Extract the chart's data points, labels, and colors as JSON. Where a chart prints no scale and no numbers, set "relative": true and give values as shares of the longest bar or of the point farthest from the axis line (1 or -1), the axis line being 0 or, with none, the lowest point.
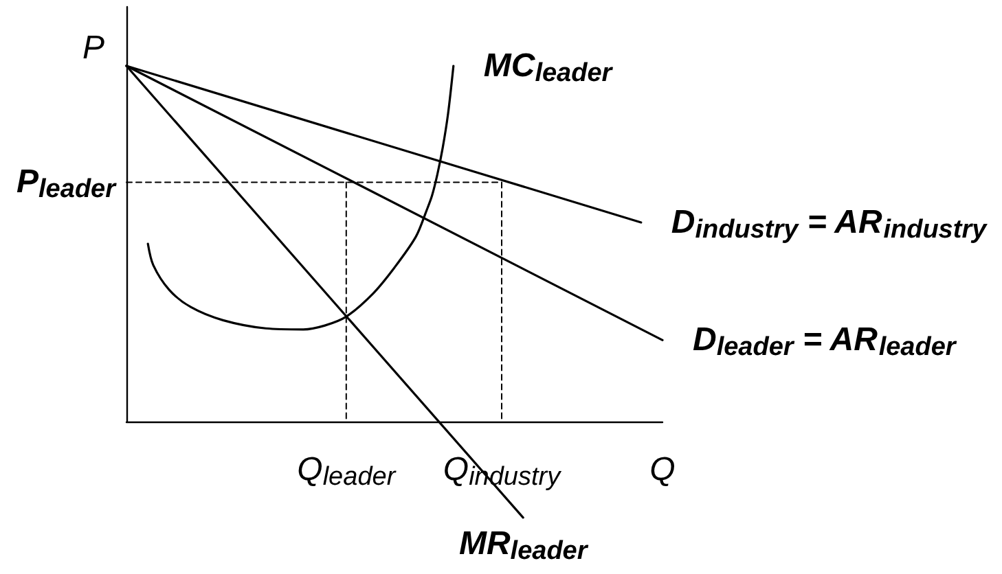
{
  "chart_data": {
    "type": "line",
    "relative": true,
    "xlabel": "Q",
    "ylabel": "P",
    "categories": [
      null,
      null,
      null,
      null,
      null,
      null,
      null,
      null,
      null,
      null,
      null,
      null,
      null,
      null,
      null,
      null,
      null,
      null,
      null,
      null,
      null,
      null,
      null,
      null,
      null,
      null,
      null,
      null,
      null,
      null,
      null,
      null,
      null,
      null,
      null,
      null,
      null,
      null,
      null,
      null,
      null,
      "Q$_{leader}$",
      null,
      null,
      null,
      null,
      null,
      null,
      null,
      null,
      null,
      null,
      null,
      null,
      null,
      null,
      null,
      null,
      null,
      null,
      null,
      null,
      null,
      null,
      null,
      null,
      null,
      null,
      null,
      null,
      "Q$_{industry}$",
      null,
      null,
      null,
      null,
      null,
      null,
      null,
      null,
      null,
      null,
      null,
      null,
      null,
      null,
      null,
      null,
      null,
      null,
      null,
      null,
      null,
      null,
      null,
      null,
      null,
      null,
      null,
      null,
      null,
      null
    ],
    "tick_labels": "x",
    "grid": false,
    "marker": "none",
    "line_style": "solid",
    "series": [
      {
        "name": "D$_{industry}$ = AR$_{industry}$",
        "color": "#000000",
        "values": [
          1,
          null,
          null,
          null,
          null,
          null,
          null,
          null,
          null,
          null,
          null,
          null,
          null,
          null,
          null,
          null,
          null,
          null,
          null,
          null,
          null,
          null,
          null,
          null,
          null,
          null,
          null,
          null,
          null,
          null,
          null,
          null,
          null,
          null,
          null,
          null,
          null,
          null,
          null,
          null,
          null,
          null,
          null,
          null,
          null,
          null,
          null,
          null,
          null,
          null,
          null,
          null,
          null,
          null,
          null,
          null,
          null,
          null,
          null,
          null,
          null,
          null,
          null,
          null,
          null,
          null,
          null,
          null,
          null,
          null,
          null,
          null,
          null,
          null,
          null,
          null,
          null,
          null,
          null,
          null,
          null,
          null,
          null,
          null,
          null,
          null,
          null,
          null,
          null,
          null,
          null,
          null,
          null,
          null,
          null,
          null,
          0.56,
          null,
          null,
          null,
          null
        ]
      },
      {
        "name": "D$_{leader}$ = AR$_{leader}$",
        "color": "#000000",
        "values": [
          1,
          null,
          null,
          null,
          null,
          null,
          null,
          null,
          null,
          null,
          null,
          null,
          null,
          null,
          null,
          null,
          null,
          null,
          null,
          null,
          null,
          null,
          null,
          null,
          null,
          null,
          null,
          null,
          null,
          null,
          null,
          null,
          null,
          null,
          null,
          null,
          null,
          null,
          null,
          null,
          null,
          null,
          null,
          null,
          null,
          null,
          null,
          null,
          null,
          null,
          null,
          null,
          null,
          null,
          null,
          null,
          null,
          null,
          null,
          null,
          null,
          null,
          null,
          null,
          null,
          null,
          null,
          null,
          null,
          null,
          null,
          null,
          null,
          null,
          null,
          null,
          null,
          null,
          null,
          null,
          null,
          null,
          null,
          null,
          null,
          null,
          null,
          null,
          null,
          null,
          null,
          null,
          null,
          null,
          null,
          null,
          null,
          null,
          null,
          null,
          0.229
        ]
      },
      {
        "name": "MR$_{leader}$",
        "color": "#000000",
        "values": [
          1,
          null,
          null,
          null,
          null,
          null,
          null,
          null,
          null,
          null,
          null,
          null,
          null,
          null,
          null,
          null,
          null,
          null,
          null,
          null,
          null,
          null,
          null,
          null,
          null,
          null,
          null,
          null,
          null,
          null,
          null,
          null,
          null,
          null,
          null,
          null,
          null,
          null,
          null,
          null,
          null,
          null,
          null,
          null,
          null,
          null,
          null,
          null,
          null,
          null,
          null,
          null,
          null,
          null,
          null,
          null,
          null,
          null,
          null,
          null,
          null,
          null,
          null,
          null,
          null,
          null,
          null,
          null,
          null,
          null,
          null,
          null,
          null,
          null,
          -0.27,
          null,
          null,
          null,
          null,
          null,
          null,
          null,
          null,
          null,
          null,
          null,
          null,
          null,
          null,
          null,
          null,
          null,
          null,
          null,
          null,
          null,
          null,
          null,
          null,
          null,
          null
        ]
      },
      {
        "name": "MC$_{leader}$",
        "color": "#000000",
        "values": [
          null,
          null,
          null,
          null,
          0.5,
          0.44,
          null,
          null,
          0.37,
          null,
          null,
          null,
          0.322,
          null,
          null,
          null,
          null,
          null,
          0.285,
          null,
          null,
          null,
          null,
          null,
          null,
          null,
          0.262,
          null,
          null,
          null,
          null,
          null,
          null,
          0.259,
          null,
          null,
          null,
          0.27,
          null,
          null,
          null,
          0.295,
          null,
          null,
          null,
          null,
          0.36,
          null,
          null,
          null,
          0.433,
          null,
          null,
          null,
          0.52,
          null,
          0.594,
          0.635,
          0.695,
          0.77,
          0.866,
          1,
          null,
          null,
          null,
          null,
          null,
          null,
          null,
          null,
          null,
          null,
          null,
          null,
          null,
          null,
          null,
          null,
          null,
          null,
          null,
          null,
          null,
          null,
          null,
          null,
          null,
          null,
          null,
          null,
          null,
          null,
          null,
          null,
          null,
          null,
          null,
          null,
          null,
          null,
          null
        ]
      },
      {
        "name": "P$_{leader}$",
        "color": "#000000",
        "line_style": "dashed",
        "values": [
          0.673,
          null,
          null,
          null,
          null,
          null,
          null,
          null,
          null,
          null,
          null,
          null,
          null,
          null,
          null,
          null,
          null,
          null,
          null,
          null,
          null,
          null,
          null,
          null,
          null,
          null,
          null,
          null,
          null,
          null,
          null,
          null,
          null,
          null,
          null,
          null,
          null,
          null,
          null,
          null,
          null,
          null,
          null,
          null,
          null,
          null,
          null,
          null,
          null,
          null,
          null,
          null,
          null,
          null,
          null,
          null,
          null,
          null,
          null,
          null,
          null,
          null,
          null,
          null,
          null,
          null,
          null,
          null,
          null,
          null,
          0.673,
          null,
          null,
          null,
          null,
          null,
          null,
          null,
          null,
          null,
          null,
          null,
          null,
          null,
          null,
          null,
          null,
          null,
          null,
          null,
          null,
          null,
          null,
          null,
          null,
          null,
          null,
          null,
          null,
          null,
          null
        ]
      },
      {
        "color": "#000000",
        "line_style": "dashed",
        "x": [
          "Q$_{leader}$",
          "Q$_{leader}$"
        ],
        "values": [
          0.673,
          0
        ]
      },
      {
        "color": "#000000",
        "line_style": "dashed",
        "x": [
          "Q$_{industry}$",
          "Q$_{industry}$"
        ],
        "values": [
          0.673,
          0
        ]
      }
    ]
  }
}
